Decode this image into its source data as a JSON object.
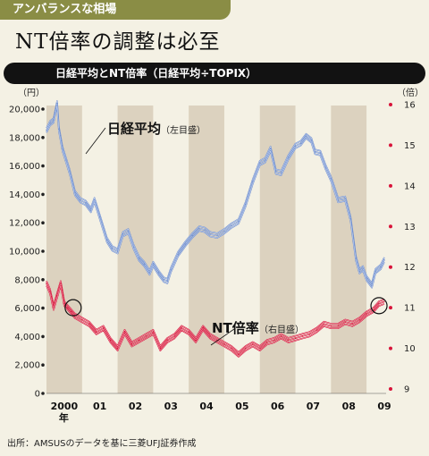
{
  "kicker": "アンバランスな相場",
  "headline": "NT倍率の調整は必至",
  "chart_bar_title": "日経平均とNT倍率（日経平均÷TOPIX）",
  "source": "出所：AMSUSのデータを基に三菱UFJ証券作成",
  "colors": {
    "nikkei": "#6f8fd0",
    "nt": "#d8143a",
    "band": "#dcd2bf",
    "bg": "#f4f1e4",
    "circle": "#111111"
  },
  "chart_data": {
    "type": "line",
    "left_axis": {
      "unit_label": "（円）",
      "ticks": [
        "20,000",
        "18,000",
        "16,000",
        "14,000",
        "12,000",
        "10,000",
        "8,000",
        "6,000",
        "4,000",
        "2,000",
        "0"
      ],
      "range": [
        0,
        20000
      ]
    },
    "right_axis": {
      "unit_label": "（倍）",
      "ticks": [
        "16",
        "15",
        "14",
        "13",
        "12",
        "11",
        "10",
        "9"
      ],
      "range": [
        9,
        16
      ]
    },
    "x_ticks": [
      "2000",
      "01",
      "02",
      "03",
      "04",
      "05",
      "06",
      "07",
      "08",
      "09"
    ],
    "x_year_suffix": "年",
    "x_range": [
      2000.0,
      2009.55
    ],
    "shaded_years": [
      2000,
      2002,
      2004,
      2006,
      2008
    ],
    "series": [
      {
        "name": "日経平均",
        "axis_note": "（左目盛）",
        "axis": "left",
        "x": [
          2000.0,
          2000.1,
          2000.2,
          2000.3,
          2000.35,
          2000.45,
          2000.55,
          2000.65,
          2000.8,
          2000.95,
          2001.1,
          2001.25,
          2001.35,
          2001.5,
          2001.7,
          2001.85,
          2002.0,
          2002.15,
          2002.3,
          2002.45,
          2002.6,
          2002.75,
          2002.9,
          2003.0,
          2003.15,
          2003.3,
          2003.4,
          2003.5,
          2003.7,
          2003.9,
          2004.1,
          2004.3,
          2004.45,
          2004.6,
          2004.8,
          2005.0,
          2005.2,
          2005.4,
          2005.6,
          2005.8,
          2006.0,
          2006.15,
          2006.3,
          2006.45,
          2006.6,
          2006.8,
          2007.0,
          2007.15,
          2007.3,
          2007.45,
          2007.55,
          2007.7,
          2007.85,
          2008.0,
          2008.2,
          2008.4,
          2008.55,
          2008.7,
          2008.8,
          2008.9,
          2009.0,
          2009.15,
          2009.25,
          2009.4,
          2009.5
        ],
        "values": [
          18500,
          19000,
          19200,
          20400,
          18600,
          17200,
          16400,
          15600,
          14100,
          13600,
          13400,
          12900,
          13600,
          12400,
          10800,
          10200,
          10000,
          11200,
          11400,
          10300,
          9500,
          9100,
          8500,
          9100,
          8500,
          8000,
          7900,
          8700,
          9800,
          10500,
          11100,
          11600,
          11500,
          11200,
          11100,
          11400,
          11800,
          12100,
          13300,
          14900,
          16200,
          16400,
          17200,
          15600,
          15500,
          16600,
          17400,
          17600,
          18100,
          17800,
          17000,
          16900,
          15900,
          15100,
          13600,
          13700,
          12300,
          9500,
          8600,
          8800,
          8100,
          7600,
          8600,
          8900,
          9400
        ]
      },
      {
        "name": "NT倍率",
        "axis_note": "（右目盛）",
        "axis": "right",
        "x": [
          2000.0,
          2000.1,
          2000.2,
          2000.3,
          2000.4,
          2000.5,
          2000.6,
          2000.7,
          2000.8,
          2001.0,
          2001.2,
          2001.4,
          2001.6,
          2001.8,
          2002.0,
          2002.2,
          2002.4,
          2002.6,
          2002.8,
          2003.0,
          2003.2,
          2003.4,
          2003.6,
          2003.8,
          2004.0,
          2004.2,
          2004.4,
          2004.6,
          2004.8,
          2005.0,
          2005.2,
          2005.4,
          2005.6,
          2005.8,
          2006.0,
          2006.2,
          2006.4,
          2006.6,
          2006.8,
          2007.0,
          2007.2,
          2007.4,
          2007.6,
          2007.8,
          2008.0,
          2008.2,
          2008.4,
          2008.6,
          2008.8,
          2009.0,
          2009.2,
          2009.35,
          2009.5
        ],
        "values": [
          11.6,
          11.4,
          11.0,
          11.3,
          11.6,
          11.1,
          11.0,
          10.9,
          10.8,
          10.7,
          10.6,
          10.4,
          10.5,
          10.2,
          10.0,
          10.4,
          10.1,
          10.2,
          10.3,
          10.4,
          10.0,
          10.2,
          10.3,
          10.5,
          10.4,
          10.2,
          10.5,
          10.3,
          10.2,
          10.1,
          10.0,
          9.85,
          10.0,
          10.1,
          10.0,
          10.15,
          10.2,
          10.3,
          10.2,
          10.25,
          10.3,
          10.35,
          10.45,
          10.6,
          10.55,
          10.55,
          10.65,
          10.6,
          10.7,
          10.85,
          10.95,
          11.1,
          11.15
        ]
      }
    ],
    "annotations": [
      {
        "type": "circle",
        "x": 2000.75,
        "axis": "right",
        "y": 11.0
      },
      {
        "type": "circle",
        "x": 2009.35,
        "axis": "right",
        "y": 11.05
      }
    ]
  }
}
